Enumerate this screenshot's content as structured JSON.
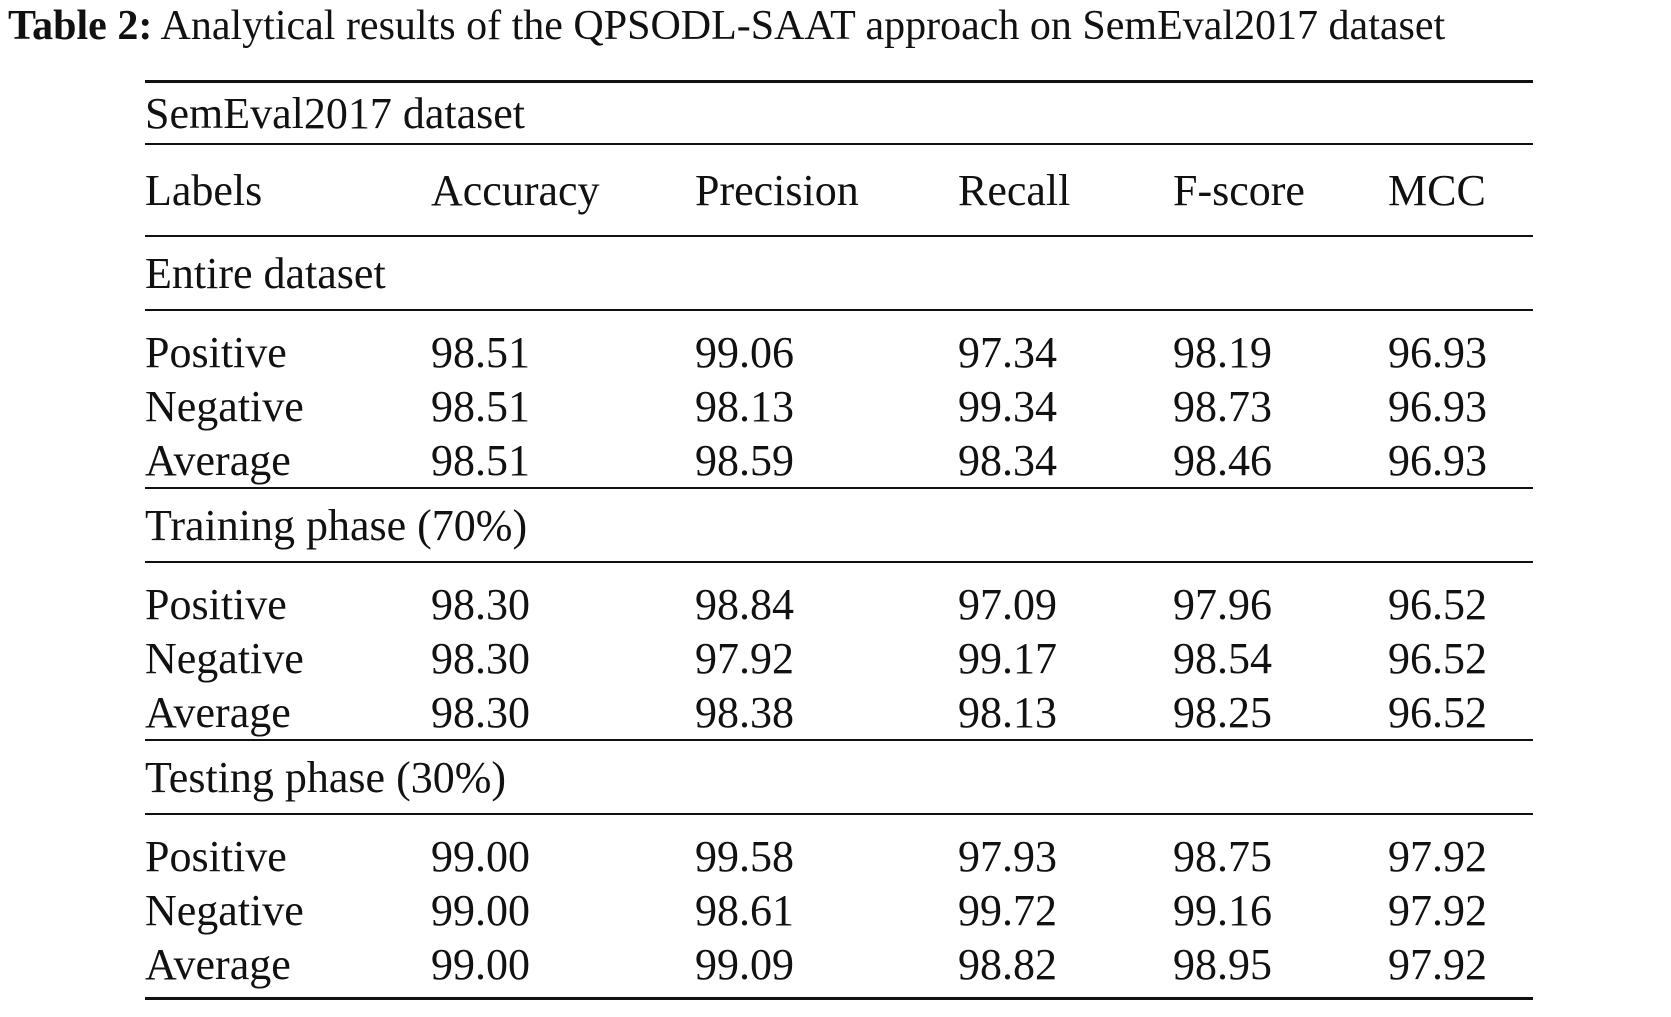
{
  "caption": {
    "label": "Table 2:",
    "text": "Analytical results of the QPSODL-SAAT approach on SemEval2017 dataset"
  },
  "table": {
    "dataset_title": "SemEval2017 dataset",
    "columns": [
      "Labels",
      "Accuracy",
      "Precision",
      "Recall",
      "F-score",
      "MCC"
    ],
    "sections": [
      {
        "title": "Entire dataset",
        "rows": [
          [
            "Positive",
            "98.51",
            "99.06",
            "97.34",
            "98.19",
            "96.93"
          ],
          [
            "Negative",
            "98.51",
            "98.13",
            "99.34",
            "98.73",
            "96.93"
          ],
          [
            "Average",
            "98.51",
            "98.59",
            "98.34",
            "98.46",
            "96.93"
          ]
        ]
      },
      {
        "title": "Training phase (70%)",
        "rows": [
          [
            "Positive",
            "98.30",
            "98.84",
            "97.09",
            "97.96",
            "96.52"
          ],
          [
            "Negative",
            "98.30",
            "97.92",
            "99.17",
            "98.54",
            "96.52"
          ],
          [
            "Average",
            "98.30",
            "98.38",
            "98.13",
            "98.25",
            "96.52"
          ]
        ]
      },
      {
        "title": "Testing phase (30%)",
        "rows": [
          [
            "Positive",
            "99.00",
            "99.58",
            "97.93",
            "98.75",
            "97.92"
          ],
          [
            "Negative",
            "99.00",
            "98.61",
            "99.72",
            "99.16",
            "97.92"
          ],
          [
            "Average",
            "99.00",
            "99.09",
            "98.82",
            "98.95",
            "97.92"
          ]
        ]
      }
    ]
  }
}
